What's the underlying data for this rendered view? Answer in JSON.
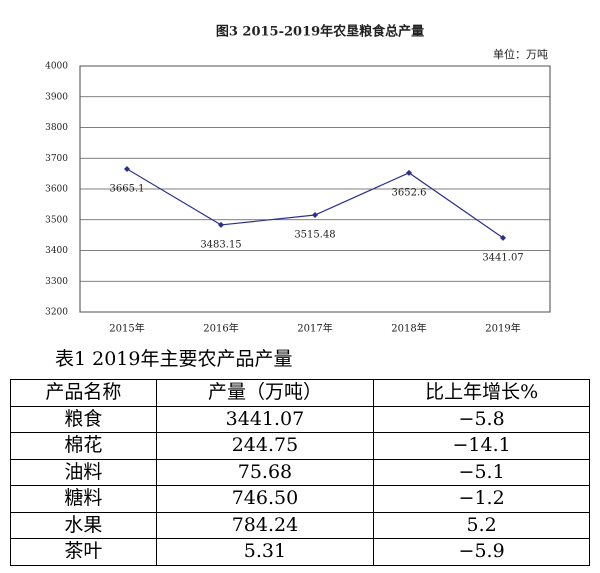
{
  "chart_data": {
    "type": "line",
    "title": "图3  2015-2019年农垦粮食总产量",
    "unit": "单位：万吨",
    "categories": [
      "2015年",
      "2016年",
      "2017年",
      "2018年",
      "2019年"
    ],
    "values": [
      3665.1,
      3483.15,
      3515.48,
      3652.6,
      3441.07
    ],
    "color": "#2b2f8f",
    "ylim": [
      3200,
      4000
    ],
    "yticks": [
      3200,
      3300,
      3400,
      3500,
      3600,
      3700,
      3800,
      3900,
      4000
    ],
    "grid": true
  },
  "table": {
    "title": "表1   2019年主要农产品产量",
    "header": [
      "产品名称",
      "产量（万吨）",
      "比上年增长%"
    ],
    "rows": [
      [
        "粮食",
        "3441.07",
        "−5.8"
      ],
      [
        "棉花",
        "244.75",
        "−14.1"
      ],
      [
        "油料",
        "75.68",
        "−5.1"
      ],
      [
        "糖料",
        "746.50",
        "−1.2"
      ],
      [
        "水果",
        "784.24",
        "5.2"
      ],
      [
        "茶叶",
        "5.31",
        "−5.9"
      ]
    ]
  }
}
